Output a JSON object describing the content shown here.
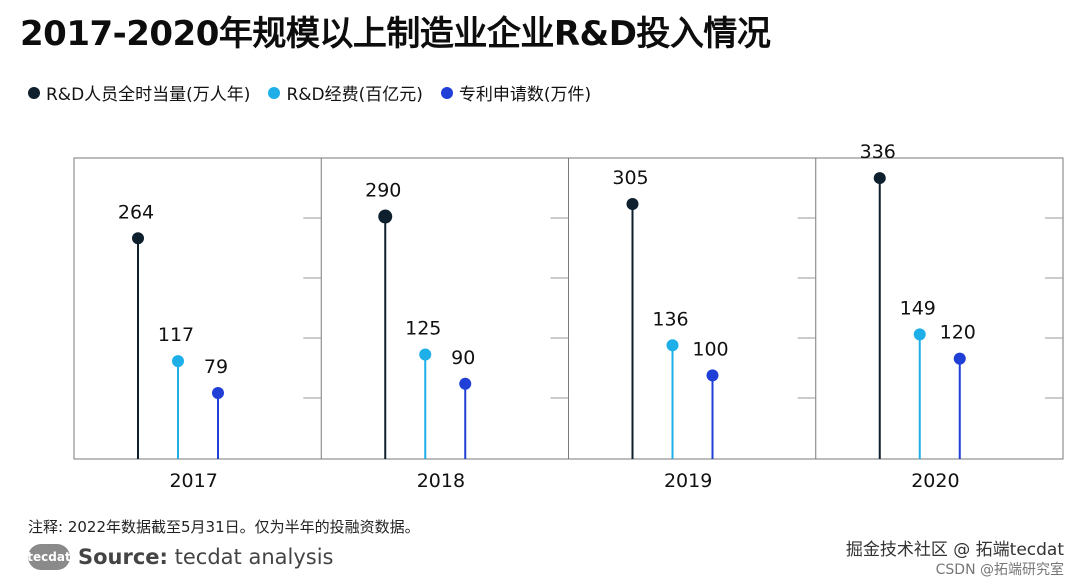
{
  "title": "2017-2020年规模以上制造业企业R&D投入情况",
  "legend": [
    {
      "label": "R&D人员全时当量(万人年)",
      "color": "#0e1f2d"
    },
    {
      "label": "R&D经费(百亿元)",
      "color": "#1eaee8"
    },
    {
      "label": "专利申请数(万件)",
      "color": "#1f3fd6"
    }
  ],
  "chart_data": {
    "type": "lollipop",
    "categories": [
      "2017",
      "2018",
      "2019",
      "2020"
    ],
    "series": [
      {
        "name": "R&D人员全时当量(万人年)",
        "color": "#0e1f2d",
        "values": [
          264,
          290,
          305,
          336
        ]
      },
      {
        "name": "R&D经费(百亿元)",
        "color": "#1eaee8",
        "values": [
          117,
          125,
          136,
          149
        ]
      },
      {
        "name": "专利申请数(万件)",
        "color": "#1f3fd6",
        "values": [
          79,
          90,
          100,
          120
        ]
      }
    ],
    "ylim": [
      0,
      360
    ],
    "grid": true
  },
  "note": "注释: 2022年数据截至5月31日。仅为半年的投融资数据。",
  "source": {
    "logo": "tecdat",
    "label": "Source:",
    "text": "tecdat analysis"
  },
  "watermark": {
    "line1": "掘金技术社区 @ 拓端tecdat",
    "line2": "CSDN @拓端研究室"
  }
}
